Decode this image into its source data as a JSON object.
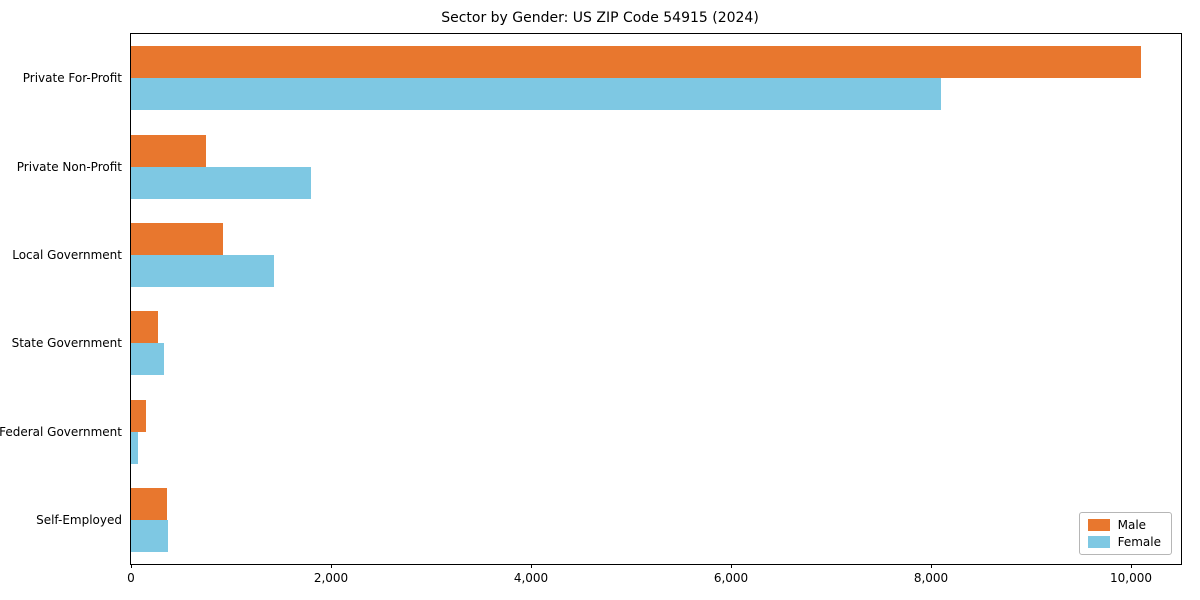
{
  "chart_data": {
    "type": "bar",
    "orientation": "horizontal",
    "title": "Sector by Gender: US ZIP Code 54915 (2024)",
    "categories": [
      "Private For-Profit",
      "Private Non-Profit",
      "Local Government",
      "State Government",
      "Federal Government",
      "Self-Employed"
    ],
    "series": [
      {
        "name": "Male",
        "color": "#e8772e",
        "values": [
          10100,
          750,
          920,
          270,
          150,
          360
        ]
      },
      {
        "name": "Female",
        "color": "#7ec8e3",
        "values": [
          8100,
          1800,
          1430,
          330,
          70,
          370
        ]
      }
    ],
    "xlabel": "",
    "ylabel": "",
    "xlim": [
      0,
      10500
    ],
    "xticks": [
      {
        "value": 0,
        "label": "0"
      },
      {
        "value": 2000,
        "label": "2,000"
      },
      {
        "value": 4000,
        "label": "4,000"
      },
      {
        "value": 6000,
        "label": "6,000"
      },
      {
        "value": 8000,
        "label": "8,000"
      },
      {
        "value": 10000,
        "label": "10,000"
      }
    ],
    "grid": false,
    "legend_position": "lower right"
  }
}
